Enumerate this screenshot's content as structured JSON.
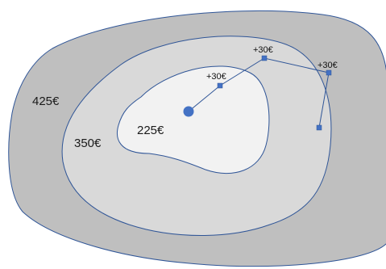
{
  "zones": {
    "outer": {
      "label": "425€",
      "fill": "#bfbfbf"
    },
    "middle": {
      "label": "350€",
      "fill": "#d9d9d9"
    },
    "inner": {
      "label": "225€",
      "fill": "#f2f2f2"
    }
  },
  "path_steps": [
    {
      "label": "+30€"
    },
    {
      "label": "+30€"
    },
    {
      "label": "+30€"
    }
  ],
  "colors": {
    "outline": "#2f5597",
    "marker": "#4472c4"
  }
}
